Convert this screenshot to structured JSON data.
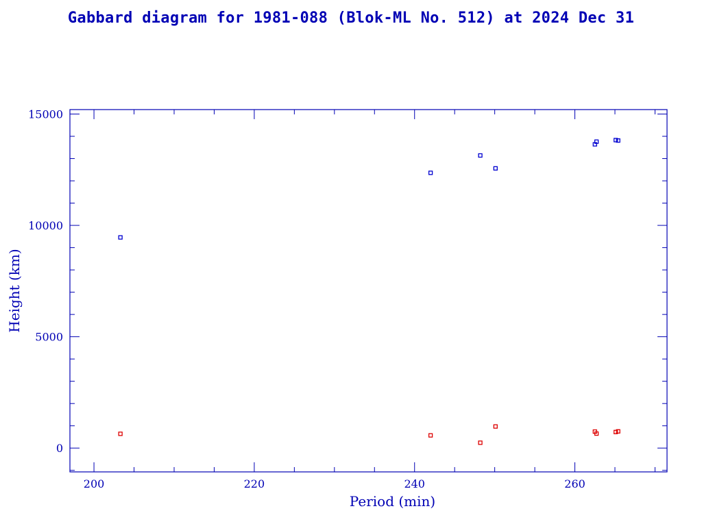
{
  "chart_data": {
    "type": "scatter",
    "title": "Gabbard diagram for 1981-088 (Blok-ML No. 512) at 2024 Dec 31",
    "xlabel": "Period (min)",
    "ylabel": "Height (km)",
    "xlim": [
      197,
      271.5
    ],
    "ylim": [
      -1070,
      15200
    ],
    "x_ticks": [
      200,
      220,
      240,
      260
    ],
    "x_tick_labels": [
      "200",
      "220",
      "240",
      "260"
    ],
    "y_ticks": [
      0,
      5000,
      10000,
      15000
    ],
    "y_tick_labels": [
      "0",
      "5000",
      "10000",
      "15000"
    ],
    "grid": false,
    "series": [
      {
        "color": "#0000d0",
        "points": [
          {
            "x": 203.3,
            "y": 9460
          },
          {
            "x": 242.0,
            "y": 12360
          },
          {
            "x": 248.2,
            "y": 13140
          },
          {
            "x": 250.1,
            "y": 12560
          },
          {
            "x": 262.5,
            "y": 13640
          },
          {
            "x": 262.7,
            "y": 13760
          },
          {
            "x": 265.1,
            "y": 13830
          },
          {
            "x": 265.4,
            "y": 13810
          }
        ]
      },
      {
        "color": "#dd0000",
        "points": [
          {
            "x": 203.3,
            "y": 640
          },
          {
            "x": 242.0,
            "y": 570
          },
          {
            "x": 248.2,
            "y": 240
          },
          {
            "x": 250.1,
            "y": 970
          },
          {
            "x": 262.5,
            "y": 740
          },
          {
            "x": 262.7,
            "y": 650
          },
          {
            "x": 265.1,
            "y": 720
          },
          {
            "x": 265.4,
            "y": 750
          }
        ]
      }
    ],
    "colors": {
      "axis": "#0000b4",
      "apogee": "#0000d0",
      "perigee": "#dd0000"
    }
  }
}
